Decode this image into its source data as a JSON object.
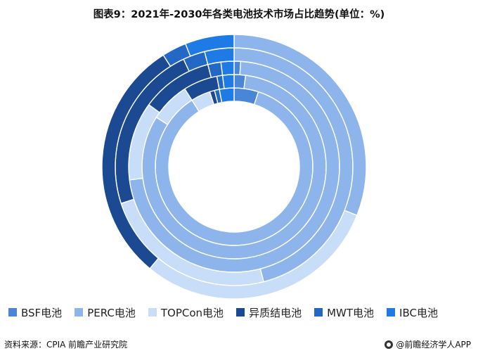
{
  "title": "图表9：2021年-2030年各类电池技术市场占比趋势(单位：%)",
  "footer": {
    "source": "资料来源：CPIA 前瞻产业研究院",
    "brand": "@前瞻经济学人APP"
  },
  "colors": {
    "BSF电池": "#4a86d8",
    "PERC电池": "#8db5ec",
    "TOPCon电池": "#c8ddf7",
    "异质结电池": "#1b4a93",
    "MWT电池": "#2468c6",
    "IBC电池": "#1e7be6"
  },
  "chart_data": {
    "type": "donut",
    "title": "图表9：2021年-2030年各类电池技术市场占比趋势(单位：%)",
    "categories": [
      "BSF电池",
      "PERC电池",
      "TOPCon电池",
      "异质结电池",
      "MWT电池",
      "IBC电池"
    ],
    "rings_inner_to_outer": [
      {
        "values": [
          5,
          86,
          4,
          1,
          1,
          3
        ]
      },
      {
        "values": [
          2,
          82,
          7,
          6,
          1,
          2
        ]
      },
      {
        "values": [
          1,
          72,
          12,
          11,
          2,
          2
        ]
      },
      {
        "values": [
          0,
          46,
          24,
          23,
          3,
          4
        ]
      },
      {
        "values": [
          0,
          31,
          30,
          30,
          3,
          6
        ]
      }
    ],
    "legend_position": "bottom"
  }
}
